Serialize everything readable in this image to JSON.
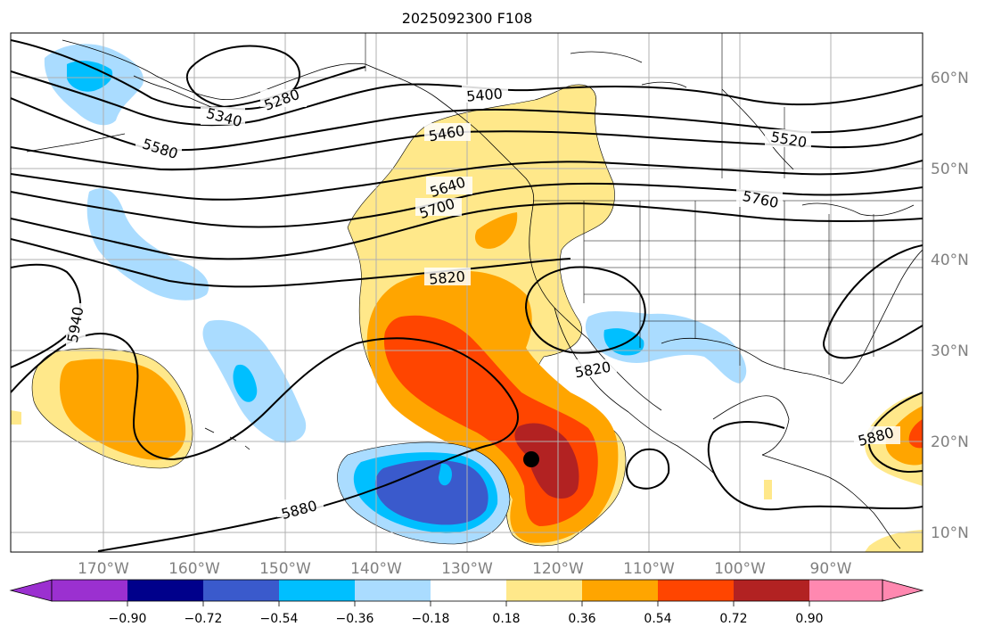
{
  "title": "2025092300 F108",
  "lon_labels": [
    "170°W",
    "160°W",
    "150°W",
    "140°W",
    "130°W",
    "120°W",
    "110°W",
    "100°W",
    "90°W"
  ],
  "lat_labels": [
    "60°N",
    "50°N",
    "40°N",
    "30°N",
    "20°N",
    "10°N"
  ],
  "contour_labels": [
    "5280",
    "5340",
    "5400",
    "5460",
    "5520",
    "5580",
    "5640",
    "5700",
    "5760",
    "5820",
    "5820",
    "5880",
    "5880",
    "5940"
  ],
  "colorbar": {
    "tick_labels": [
      "−0.90",
      "−0.72",
      "−0.54",
      "−0.36",
      "−0.18",
      "0.18",
      "0.36",
      "0.54",
      "0.72",
      "0.90"
    ],
    "colors": [
      "#9b30d0",
      "#00008b",
      "#3a5acc",
      "#00bfff",
      "#aadcff",
      "#ffffff",
      "#ffe88a",
      "#ffa500",
      "#ff4500",
      "#b22222",
      "#ff88b0"
    ]
  },
  "colors": {
    "fill_light_yellow": "#ffe88a",
    "fill_orange": "#ffa500",
    "fill_red_orange": "#ff4500",
    "fill_dark_red": "#b22222",
    "fill_light_blue": "#aadcff",
    "fill_cyan": "#00bfff",
    "fill_blue": "#3a5acc",
    "grid": "#b0b0b0",
    "tick_label": "#808080"
  }
}
